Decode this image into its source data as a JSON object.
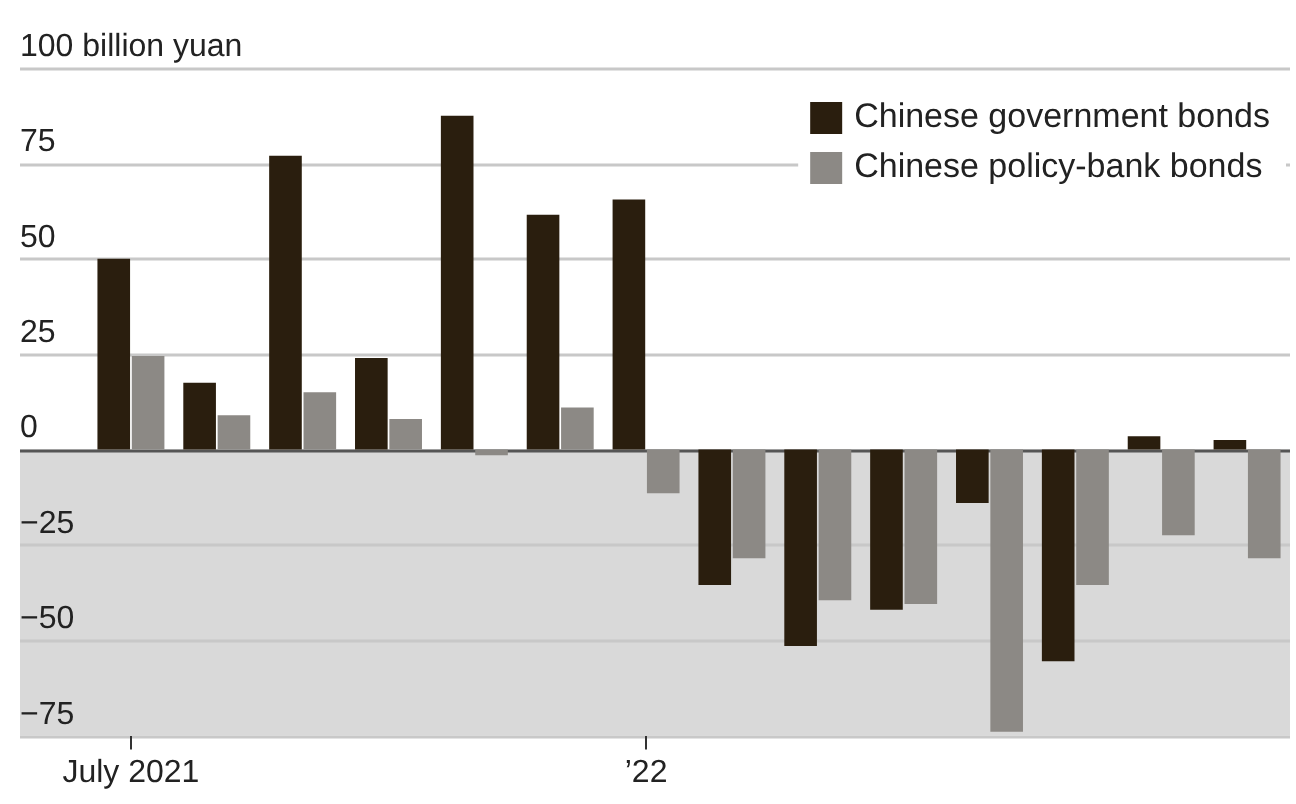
{
  "chart_data": {
    "type": "bar",
    "categories": [
      "July 2021",
      null,
      null,
      null,
      null,
      null,
      "’22",
      null,
      null,
      null,
      null,
      null,
      null,
      null
    ],
    "series": [
      {
        "name": "Chinese government bonds",
        "color": "#2a1e0e",
        "values": [
          50,
          17.5,
          77,
          24,
          87.5,
          61.5,
          65.5,
          -35.5,
          -51.5,
          -42,
          -14,
          -55.5,
          3.5,
          2.5
        ]
      },
      {
        "name": "Chinese policy-bank bonds",
        "color": "#8c8985",
        "values": [
          24.5,
          9,
          15,
          8,
          -1.5,
          11,
          -11.5,
          -28.5,
          -39.5,
          -40.5,
          -74,
          -35.5,
          -22.5,
          -28.5
        ]
      }
    ],
    "ylim": [
      -75,
      100
    ],
    "yticks": [
      {
        "value": 100,
        "label": "100 billion yuan"
      },
      75,
      50,
      25,
      0,
      -25,
      -50,
      -75
    ],
    "bands": [
      {
        "axis": "y",
        "from": -75,
        "to": 0,
        "color": "#d9d9d9"
      }
    ],
    "grid": "y",
    "legend": "top right"
  }
}
